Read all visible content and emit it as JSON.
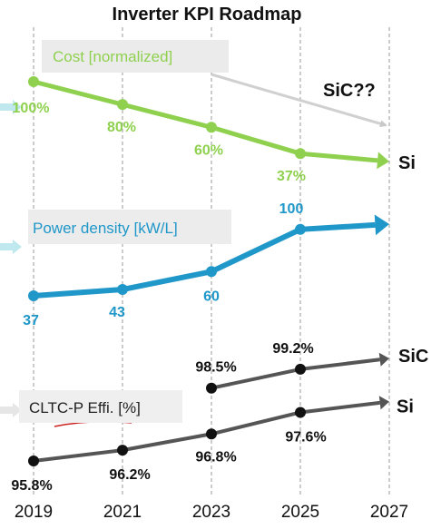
{
  "chart_data": {
    "type": "line",
    "title": "Inverter KPI Roadmap",
    "x": [
      2019,
      2021,
      2023,
      2025,
      2027
    ],
    "panels": [
      {
        "id": "cost",
        "label": "Cost [normalized]",
        "color": "#8fd14f",
        "series": [
          {
            "name": "Si",
            "points": [
              {
                "x": 2019,
                "y": 100,
                "label": "100%"
              },
              {
                "x": 2021,
                "y": 80,
                "label": "80%"
              },
              {
                "x": 2023,
                "y": 60,
                "label": "60%"
              },
              {
                "x": 2025,
                "y": 37,
                "label": "37%"
              },
              {
                "x": 2027,
                "y": 30
              }
            ]
          }
        ],
        "annotation": "SiC??"
      },
      {
        "id": "power",
        "label": "Power density [kW/L]",
        "color": "#1f97c9",
        "series": [
          {
            "name": "",
            "points": [
              {
                "x": 2019,
                "y": 37,
                "label": "37"
              },
              {
                "x": 2021,
                "y": 43,
                "label": "43"
              },
              {
                "x": 2023,
                "y": 60,
                "label": "60"
              },
              {
                "x": 2025,
                "y": 100,
                "label": "100"
              },
              {
                "x": 2027,
                "y": 105
              }
            ]
          }
        ]
      },
      {
        "id": "eff",
        "label": "CLTC-P Effi. [%]",
        "color": "#555555",
        "series": [
          {
            "name": "SiC",
            "points": [
              {
                "x": 2023,
                "y": 98.5,
                "label": "98.5%"
              },
              {
                "x": 2025,
                "y": 99.2,
                "label": "99.2%"
              },
              {
                "x": 2027,
                "y": 99.6
              }
            ]
          },
          {
            "name": "Si",
            "points": [
              {
                "x": 2019,
                "y": 95.8,
                "label": "95.8%"
              },
              {
                "x": 2021,
                "y": 96.2,
                "label": "96.2%"
              },
              {
                "x": 2023,
                "y": 96.8,
                "label": "96.8%"
              },
              {
                "x": 2025,
                "y": 97.6,
                "label": "97.6%"
              },
              {
                "x": 2027,
                "y": 98.0
              }
            ]
          }
        ]
      }
    ]
  }
}
